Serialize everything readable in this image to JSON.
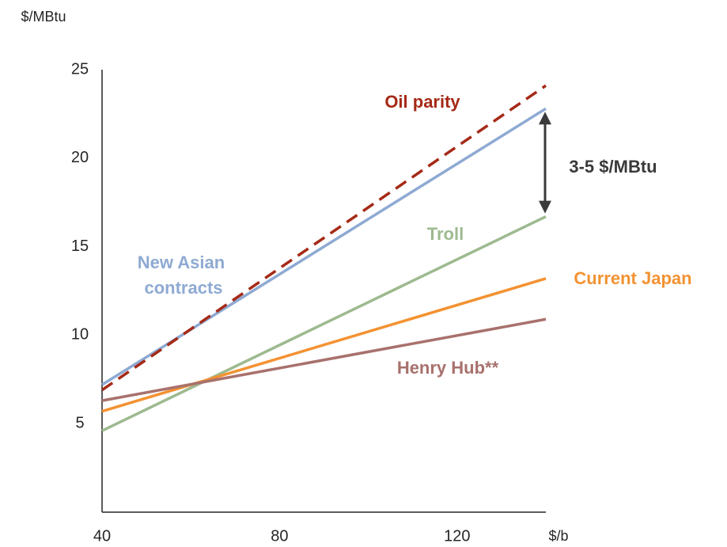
{
  "chart_data": {
    "type": "line",
    "ylabel": "$/MBtu",
    "xlabel": "$/b",
    "xlim": [
      40,
      140
    ],
    "ylim": [
      0,
      25
    ],
    "x_ticks": [
      40,
      80,
      120
    ],
    "x_tick_labels": [
      "40",
      "80",
      "120"
    ],
    "y_ticks": [
      5,
      10,
      15,
      20,
      25
    ],
    "y_tick_labels": [
      "5",
      "10",
      "15",
      "20",
      "25"
    ],
    "grid": false,
    "legend": "none",
    "series": [
      {
        "name": "Oil parity",
        "x": [
          40,
          140
        ],
        "y": [
          6.9,
          24.1
        ],
        "color": "#a52a17",
        "dashed": true
      },
      {
        "name": "New Asian contracts",
        "x": [
          40,
          140
        ],
        "y": [
          7.2,
          22.8
        ],
        "color": "#8eaad3",
        "dashed": false
      },
      {
        "name": "Troll",
        "x": [
          40,
          140
        ],
        "y": [
          4.6,
          16.7
        ],
        "color": "#9dba8f",
        "dashed": false
      },
      {
        "name": "Current Japan",
        "x": [
          40,
          140
        ],
        "y": [
          5.7,
          13.2
        ],
        "color": "#f39232",
        "dashed": false
      },
      {
        "name": "Henry Hub**",
        "x": [
          40,
          140
        ],
        "y": [
          6.3,
          10.9
        ],
        "color": "#a8716d",
        "dashed": false
      }
    ],
    "annotations": [
      {
        "text": "3-5 $/MBtu",
        "x": 140,
        "y_from": 16.7,
        "y_to": 22.8,
        "color": "#3a3a3a"
      }
    ]
  }
}
